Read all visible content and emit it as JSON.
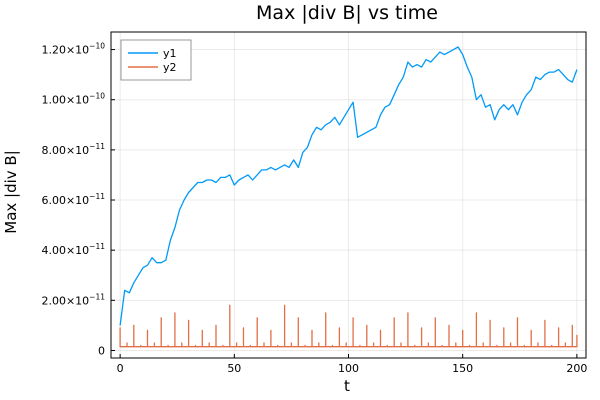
{
  "chart_data": {
    "type": "line",
    "title": "Max |div B| vs time",
    "xlabel": "t",
    "ylabel": "Max |div B|",
    "xlim": [
      -4,
      204
    ],
    "ylim": [
      -3e-12,
      1.27e-10
    ],
    "xticks": [
      0,
      50,
      100,
      150,
      200
    ],
    "xtick_labels": [
      "0",
      "50",
      "100",
      "150",
      "200"
    ],
    "yticks": [
      0,
      2e-11,
      4e-11,
      6e-11,
      8e-11,
      1e-10,
      1.2e-10
    ],
    "ytick_labels": [
      {
        "mantissa": "0",
        "exponent": ""
      },
      {
        "mantissa": "2.00×10",
        "exponent": "−11"
      },
      {
        "mantissa": "4.00×10",
        "exponent": "−11"
      },
      {
        "mantissa": "6.00×10",
        "exponent": "−11"
      },
      {
        "mantissa": "8.00×10",
        "exponent": "−11"
      },
      {
        "mantissa": "1.00×10",
        "exponent": "−10"
      },
      {
        "mantissa": "1.20×10",
        "exponent": "−10"
      }
    ],
    "grid": true,
    "legend_position": "top-left",
    "series": [
      {
        "name": "y1",
        "color": "#009af9",
        "x": [
          0,
          2,
          4,
          6,
          8,
          10,
          12,
          14,
          16,
          18,
          20,
          22,
          24,
          26,
          28,
          30,
          32,
          34,
          36,
          38,
          40,
          42,
          44,
          46,
          48,
          50,
          52,
          54,
          56,
          58,
          60,
          62,
          64,
          66,
          68,
          70,
          72,
          74,
          76,
          78,
          80,
          82,
          84,
          86,
          88,
          90,
          92,
          94,
          96,
          98,
          100,
          102,
          104,
          106,
          108,
          110,
          112,
          114,
          116,
          118,
          120,
          122,
          124,
          126,
          128,
          130,
          132,
          134,
          136,
          138,
          140,
          142,
          144,
          146,
          148,
          150,
          152,
          154,
          156,
          158,
          160,
          162,
          164,
          166,
          168,
          170,
          172,
          174,
          176,
          178,
          180,
          182,
          184,
          186,
          188,
          190,
          192,
          194,
          196,
          198,
          200
        ],
        "y": [
          1e-11,
          2.4e-11,
          2.3e-11,
          2.7e-11,
          3e-11,
          3.3e-11,
          3.4e-11,
          3.7e-11,
          3.5e-11,
          3.5e-11,
          3.6e-11,
          4.4e-11,
          4.9e-11,
          5.6e-11,
          6e-11,
          6.3e-11,
          6.5e-11,
          6.7e-11,
          6.7e-11,
          6.8e-11,
          6.8e-11,
          6.7e-11,
          6.9e-11,
          6.9e-11,
          7e-11,
          6.6e-11,
          6.8e-11,
          6.9e-11,
          7e-11,
          6.8e-11,
          7e-11,
          7.2e-11,
          7.2e-11,
          7.3e-11,
          7.2e-11,
          7.3e-11,
          7.4e-11,
          7.3e-11,
          7.6e-11,
          7.3e-11,
          7.9e-11,
          8.1e-11,
          8.6e-11,
          8.9e-11,
          8.8e-11,
          9e-11,
          9.1e-11,
          9.3e-11,
          9e-11,
          9.3e-11,
          9.6e-11,
          9.9e-11,
          8.5e-11,
          8.6e-11,
          8.7e-11,
          8.8e-11,
          8.9e-11,
          9.4e-11,
          9.7e-11,
          9.8e-11,
          1.02e-10,
          1.06e-10,
          1.09e-10,
          1.15e-10,
          1.13e-10,
          1.14e-10,
          1.13e-10,
          1.16e-10,
          1.15e-10,
          1.17e-10,
          1.19e-10,
          1.18e-10,
          1.19e-10,
          1.2e-10,
          1.21e-10,
          1.18e-10,
          1.13e-10,
          1.09e-10,
          1e-10,
          1.02e-10,
          9.7e-11,
          9.8e-11,
          9.2e-11,
          9.6e-11,
          9.8e-11,
          9.6e-11,
          9.8e-11,
          9.4e-11,
          9.9e-11,
          1.02e-10,
          1.04e-10,
          1.09e-10,
          1.08e-10,
          1.1e-10,
          1.11e-10,
          1.11e-10,
          1.12e-10,
          1.1e-10,
          1.08e-10,
          1.07e-10,
          1.12e-10
        ]
      },
      {
        "name": "y2",
        "color": "#e26f46",
        "x": [
          0,
          3,
          6,
          9,
          12,
          15,
          18,
          21,
          24,
          27,
          30,
          33,
          36,
          39,
          42,
          45,
          48,
          51,
          54,
          57,
          60,
          63,
          66,
          69,
          72,
          75,
          78,
          81,
          84,
          87,
          90,
          93,
          96,
          99,
          102,
          105,
          108,
          111,
          114,
          117,
          120,
          123,
          126,
          129,
          132,
          135,
          138,
          141,
          144,
          147,
          150,
          153,
          156,
          159,
          162,
          165,
          168,
          171,
          174,
          177,
          180,
          183,
          186,
          189,
          192,
          195,
          198,
          200
        ],
        "y": [
          9e-12,
          3e-12,
          1e-11,
          2e-12,
          8e-12,
          3e-12,
          1.3e-11,
          2e-12,
          1.5e-11,
          3e-12,
          1.2e-11,
          2e-12,
          8e-12,
          3e-12,
          1e-11,
          2e-12,
          1.8e-11,
          3e-12,
          9e-12,
          2e-12,
          1.3e-11,
          3e-12,
          8e-12,
          2e-12,
          1.8e-11,
          3e-12,
          1.3e-11,
          2e-12,
          8e-12,
          3e-12,
          1.5e-11,
          2e-12,
          9e-12,
          3e-12,
          1.3e-11,
          2e-12,
          1e-11,
          3e-12,
          8e-12,
          2e-12,
          1.3e-11,
          3e-12,
          1.5e-11,
          2e-12,
          9e-12,
          3e-12,
          1.3e-11,
          2e-12,
          1e-11,
          3e-12,
          8e-12,
          2e-12,
          1.5e-11,
          3e-12,
          1.2e-11,
          2e-12,
          9e-12,
          3e-12,
          1.3e-11,
          2e-12,
          8e-12,
          3e-12,
          1.2e-11,
          2e-12,
          9e-12,
          3e-12,
          1e-11,
          6e-12
        ]
      }
    ]
  }
}
